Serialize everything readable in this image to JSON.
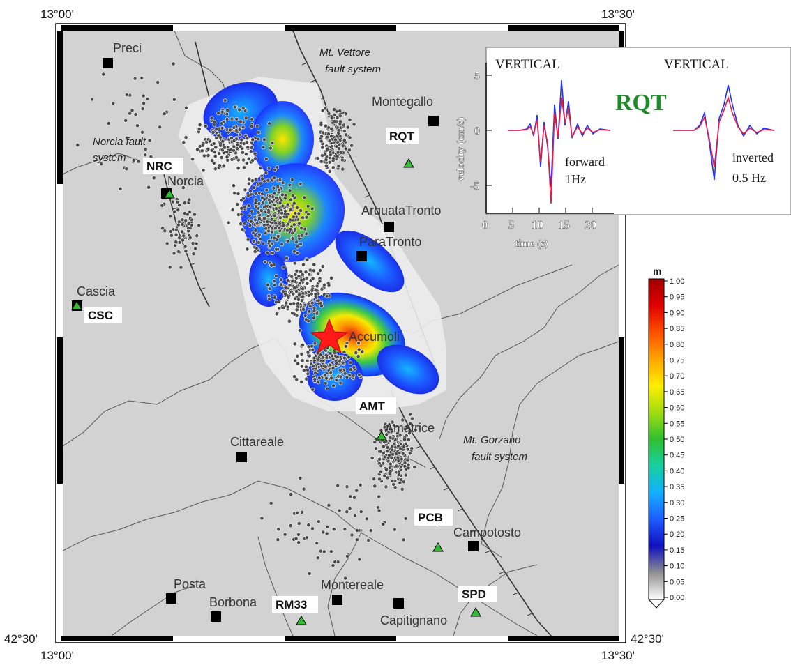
{
  "corners": {
    "top_left_lon": "13°00'",
    "top_right_lon": "13°30'",
    "bottom_left_lon": "13°00'",
    "bottom_right_lon": "13°30'",
    "left_lat": "42°30'",
    "right_lat": "42°30'"
  },
  "towns": [
    {
      "name": "Preci"
    },
    {
      "name": "Montegallo"
    },
    {
      "name": "Norcia"
    },
    {
      "name": "ArquataTronto"
    },
    {
      "name": "ParaTronto"
    },
    {
      "name": "Cascia"
    },
    {
      "name": "Accumoli"
    },
    {
      "name": "Amatrice"
    },
    {
      "name": "Cittareale"
    },
    {
      "name": "Campotosto"
    },
    {
      "name": "Posta"
    },
    {
      "name": "Borbona"
    },
    {
      "name": "Montereale"
    },
    {
      "name": "Capitignano"
    }
  ],
  "stations": [
    {
      "code": "RQT"
    },
    {
      "code": "NRC"
    },
    {
      "code": "CSC"
    },
    {
      "code": "AMT"
    },
    {
      "code": "PCB"
    },
    {
      "code": "RM33"
    },
    {
      "code": "SPD"
    }
  ],
  "faults": {
    "vettore_1": "Mt. Vettore",
    "vettore_2": "fault system",
    "norcia_1": "Norcia fault",
    "norcia_2": "system",
    "gorzano_1": "Mt. Gorzano",
    "gorzano_2": "fault system"
  },
  "inset": {
    "left_title": "VERTICAL",
    "right_title": "VERTICAL",
    "station": "RQT",
    "station_color": "#1f8a2a",
    "ylabel": "velocity (cm/s)",
    "xlabel": "time (s)",
    "yticks": [
      "5",
      "0",
      "-5"
    ],
    "xticks": [
      "0",
      "5",
      "10",
      "15",
      "20"
    ],
    "left_note_1": "forward",
    "left_note_2": "1Hz",
    "right_note_1": "inverted",
    "right_note_2": "0.5 Hz",
    "series_colors": {
      "observed": "#2233ee",
      "synthetic": "#e0204a"
    }
  },
  "colorbar": {
    "unit": "m",
    "ticks": [
      "1.00",
      "0.95",
      "0.90",
      "0.85",
      "0.80",
      "0.75",
      "0.70",
      "0.65",
      "0.60",
      "0.55",
      "0.50",
      "0.45",
      "0.40",
      "0.35",
      "0.30",
      "0.25",
      "0.20",
      "0.15",
      "0.10",
      "0.05",
      "0.00"
    ],
    "stops": [
      "#ffffff",
      "#909090",
      "#1010c0",
      "#1e5cff",
      "#13b0ff",
      "#18d0a0",
      "#30c030",
      "#a0dd10",
      "#ffee00",
      "#ffa500",
      "#ff5000",
      "#e00000",
      "#a00000"
    ]
  },
  "colors": {
    "land": "#d2d2d2",
    "epicenter": "#ff1a1a",
    "station_marker": "#33bb33"
  }
}
